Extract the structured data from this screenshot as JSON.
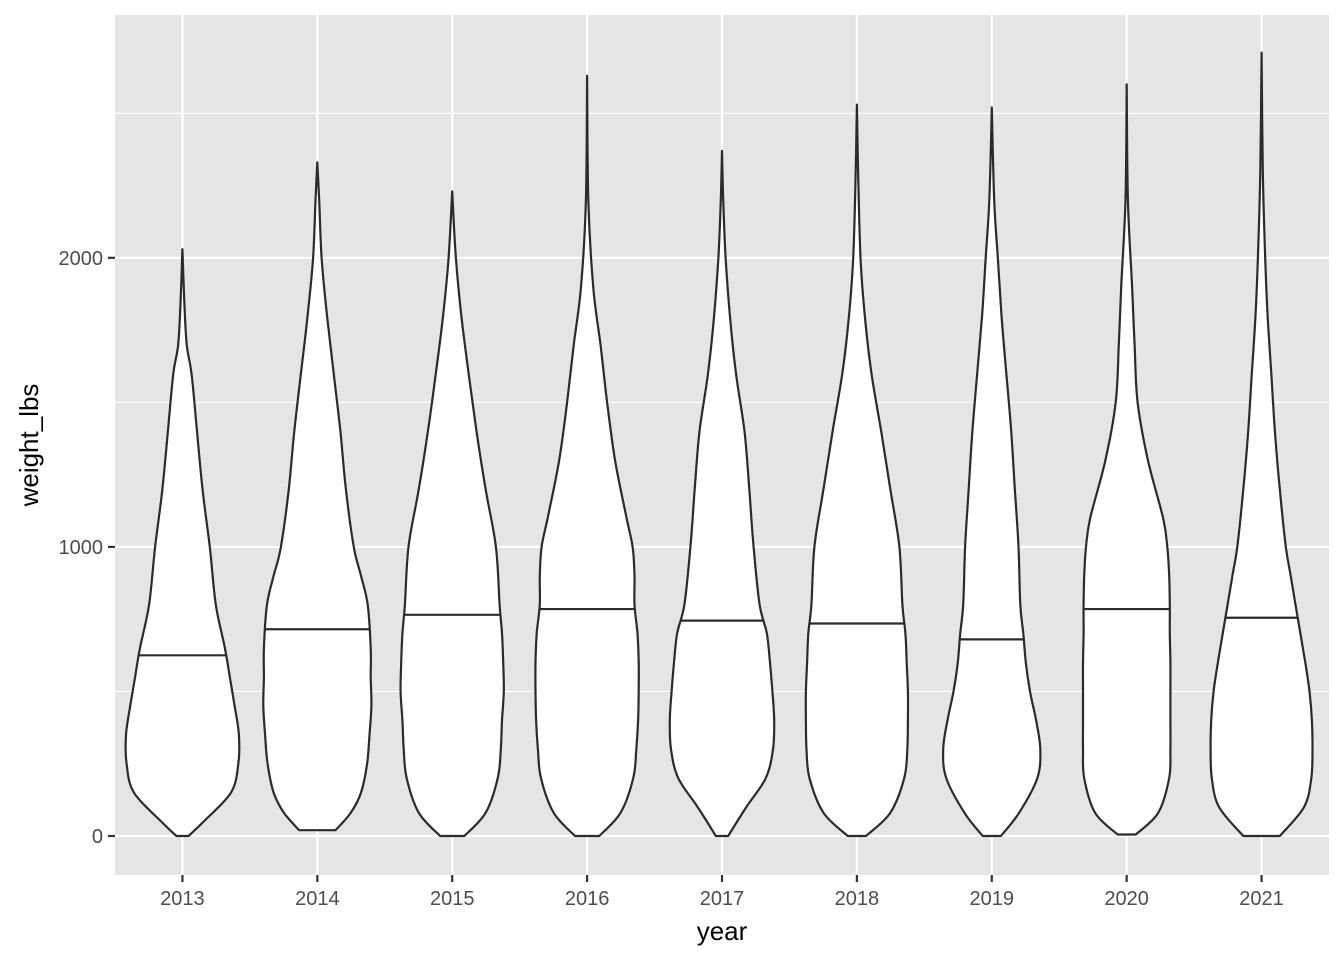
{
  "chart_data": {
    "type": "violin",
    "xlabel": "year",
    "ylabel": "weight_lbs",
    "categories": [
      "2013",
      "2014",
      "2015",
      "2016",
      "2017",
      "2018",
      "2019",
      "2020",
      "2021"
    ],
    "y_ticks": [
      0,
      1000,
      2000
    ],
    "y_tick_labels": [
      "0",
      "1000",
      "2000"
    ],
    "ylim": [
      -135,
      2840
    ],
    "grid": true,
    "legend": "none",
    "violins": [
      {
        "category": "2013",
        "min": 0,
        "max": 2030,
        "median": 625,
        "profile": [
          [
            0,
            0.1
          ],
          [
            50,
            0.35
          ],
          [
            150,
            0.8
          ],
          [
            250,
            0.92
          ],
          [
            350,
            0.93
          ],
          [
            450,
            0.86
          ],
          [
            550,
            0.78
          ],
          [
            650,
            0.7
          ],
          [
            800,
            0.55
          ],
          [
            1000,
            0.45
          ],
          [
            1200,
            0.33
          ],
          [
            1400,
            0.24
          ],
          [
            1600,
            0.15
          ],
          [
            1700,
            0.07
          ],
          [
            1850,
            0.03
          ],
          [
            2030,
            0.0
          ]
        ]
      },
      {
        "category": "2014",
        "min": 20,
        "max": 2330,
        "median": 715,
        "profile": [
          [
            20,
            0.3
          ],
          [
            80,
            0.55
          ],
          [
            150,
            0.72
          ],
          [
            250,
            0.82
          ],
          [
            350,
            0.86
          ],
          [
            450,
            0.89
          ],
          [
            550,
            0.88
          ],
          [
            650,
            0.88
          ],
          [
            800,
            0.83
          ],
          [
            900,
            0.72
          ],
          [
            1000,
            0.6
          ],
          [
            1200,
            0.47
          ],
          [
            1400,
            0.38
          ],
          [
            1600,
            0.27
          ],
          [
            1800,
            0.16
          ],
          [
            2000,
            0.07
          ],
          [
            2200,
            0.03
          ],
          [
            2330,
            0.0
          ]
        ]
      },
      {
        "category": "2015",
        "min": 0,
        "max": 2230,
        "median": 765,
        "profile": [
          [
            0,
            0.2
          ],
          [
            80,
            0.55
          ],
          [
            200,
            0.75
          ],
          [
            300,
            0.8
          ],
          [
            400,
            0.82
          ],
          [
            500,
            0.85
          ],
          [
            600,
            0.84
          ],
          [
            700,
            0.82
          ],
          [
            800,
            0.78
          ],
          [
            1000,
            0.72
          ],
          [
            1200,
            0.55
          ],
          [
            1400,
            0.4
          ],
          [
            1600,
            0.27
          ],
          [
            1800,
            0.15
          ],
          [
            2000,
            0.06
          ],
          [
            2230,
            0.0
          ]
        ]
      },
      {
        "category": "2016",
        "min": 0,
        "max": 2630,
        "median": 785,
        "profile": [
          [
            0,
            0.2
          ],
          [
            80,
            0.55
          ],
          [
            200,
            0.76
          ],
          [
            300,
            0.81
          ],
          [
            400,
            0.84
          ],
          [
            500,
            0.85
          ],
          [
            600,
            0.85
          ],
          [
            700,
            0.83
          ],
          [
            800,
            0.78
          ],
          [
            900,
            0.78
          ],
          [
            1000,
            0.75
          ],
          [
            1100,
            0.65
          ],
          [
            1300,
            0.46
          ],
          [
            1500,
            0.33
          ],
          [
            1700,
            0.22
          ],
          [
            1900,
            0.1
          ],
          [
            2200,
            0.02
          ],
          [
            2630,
            0.0
          ]
        ]
      },
      {
        "category": "2017",
        "min": 0,
        "max": 2370,
        "median": 745,
        "profile": [
          [
            0,
            0.1
          ],
          [
            100,
            0.4
          ],
          [
            200,
            0.72
          ],
          [
            300,
            0.84
          ],
          [
            400,
            0.86
          ],
          [
            500,
            0.83
          ],
          [
            600,
            0.79
          ],
          [
            700,
            0.74
          ],
          [
            800,
            0.62
          ],
          [
            1000,
            0.52
          ],
          [
            1200,
            0.45
          ],
          [
            1400,
            0.37
          ],
          [
            1600,
            0.23
          ],
          [
            1800,
            0.13
          ],
          [
            2000,
            0.06
          ],
          [
            2200,
            0.02
          ],
          [
            2370,
            0.0
          ]
        ]
      },
      {
        "category": "2018",
        "min": 0,
        "max": 2530,
        "median": 735,
        "profile": [
          [
            0,
            0.15
          ],
          [
            80,
            0.55
          ],
          [
            200,
            0.78
          ],
          [
            300,
            0.83
          ],
          [
            400,
            0.84
          ],
          [
            500,
            0.84
          ],
          [
            600,
            0.82
          ],
          [
            700,
            0.8
          ],
          [
            800,
            0.75
          ],
          [
            1000,
            0.7
          ],
          [
            1200,
            0.55
          ],
          [
            1400,
            0.4
          ],
          [
            1600,
            0.24
          ],
          [
            1800,
            0.13
          ],
          [
            2000,
            0.06
          ],
          [
            2300,
            0.02
          ],
          [
            2530,
            0.0
          ]
        ]
      },
      {
        "category": "2019",
        "min": 0,
        "max": 2520,
        "median": 680,
        "profile": [
          [
            0,
            0.15
          ],
          [
            80,
            0.45
          ],
          [
            200,
            0.75
          ],
          [
            300,
            0.8
          ],
          [
            400,
            0.73
          ],
          [
            500,
            0.63
          ],
          [
            600,
            0.56
          ],
          [
            700,
            0.52
          ],
          [
            800,
            0.47
          ],
          [
            1000,
            0.44
          ],
          [
            1200,
            0.38
          ],
          [
            1400,
            0.32
          ],
          [
            1600,
            0.24
          ],
          [
            1800,
            0.16
          ],
          [
            2000,
            0.1
          ],
          [
            2200,
            0.04
          ],
          [
            2520,
            0.0
          ]
        ]
      },
      {
        "category": "2020",
        "min": 5,
        "max": 2600,
        "median": 785,
        "profile": [
          [
            5,
            0.15
          ],
          [
            80,
            0.52
          ],
          [
            200,
            0.7
          ],
          [
            300,
            0.72
          ],
          [
            400,
            0.72
          ],
          [
            500,
            0.72
          ],
          [
            600,
            0.72
          ],
          [
            700,
            0.71
          ],
          [
            800,
            0.71
          ],
          [
            900,
            0.7
          ],
          [
            1000,
            0.67
          ],
          [
            1100,
            0.6
          ],
          [
            1300,
            0.35
          ],
          [
            1500,
            0.18
          ],
          [
            1700,
            0.13
          ],
          [
            1900,
            0.09
          ],
          [
            2200,
            0.02
          ],
          [
            2600,
            0.0
          ]
        ]
      },
      {
        "category": "2021",
        "min": 0,
        "max": 2710,
        "median": 755,
        "profile": [
          [
            0,
            0.3
          ],
          [
            100,
            0.7
          ],
          [
            200,
            0.82
          ],
          [
            300,
            0.84
          ],
          [
            400,
            0.83
          ],
          [
            500,
            0.79
          ],
          [
            600,
            0.72
          ],
          [
            700,
            0.64
          ],
          [
            800,
            0.56
          ],
          [
            900,
            0.48
          ],
          [
            1000,
            0.4
          ],
          [
            1200,
            0.3
          ],
          [
            1400,
            0.22
          ],
          [
            1600,
            0.16
          ],
          [
            1800,
            0.1
          ],
          [
            2000,
            0.06
          ],
          [
            2300,
            0.02
          ],
          [
            2710,
            0.0
          ]
        ]
      }
    ]
  }
}
